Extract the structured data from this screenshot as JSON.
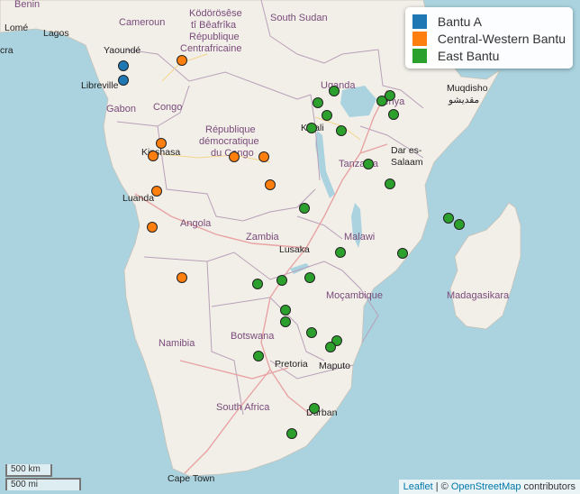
{
  "legend": {
    "items": [
      {
        "label": "Bantu A",
        "color": "#1f77b4"
      },
      {
        "label": "Central-Western Bantu",
        "color": "#ff7f0e"
      },
      {
        "label": "East Bantu",
        "color": "#2ca02c"
      }
    ]
  },
  "labels": {
    "benin": "Benin",
    "lome": "Lomé",
    "lagos": "Lagos",
    "cra": "cra",
    "cameroun": "Cameroun",
    "kodorosese": "Ködörösêse",
    "ti_beafrika": "tî Bêafrîka",
    "republique": "République",
    "centrafricaine": "Centrafricaine",
    "south_sudan": "South Sudan",
    "yaounde": "Yaoundé",
    "libreville": "Libreville",
    "gabon": "Gabon",
    "congo": "Congo",
    "uganda": "Uganda",
    "kenya": "Kenya",
    "muqdisho": "Muqdisho",
    "muqdisho_ar": "مقديشو",
    "kigali": "Kigali",
    "rdc1": "République",
    "rdc2": "démocratique",
    "rdc3": "du Congo",
    "kinshasa": "Kinshasa",
    "dar1": "Dar es-",
    "dar2": "Salaam",
    "tanzania": "Tanzania",
    "luanda": "Luanda",
    "angola": "Angola",
    "zambia": "Zambia",
    "malawi": "Malawi",
    "lusaka": "Lusaka",
    "mocambique": "Moçambique",
    "madagasikara": "Madagasikara",
    "namibia": "Namibia",
    "botswana": "Botswana",
    "pretoria": "Pretoria",
    "maputo": "Maputo",
    "south_africa": "South Africa",
    "durban": "Durban",
    "cape_town": "Cape Town"
  },
  "scale": {
    "km": "500 km",
    "mi": "500 mi"
  },
  "attribution": {
    "leaflet": "Leaflet",
    "sep": " | © ",
    "osm": "OpenStreetMap",
    "rest": " contributors"
  }
}
